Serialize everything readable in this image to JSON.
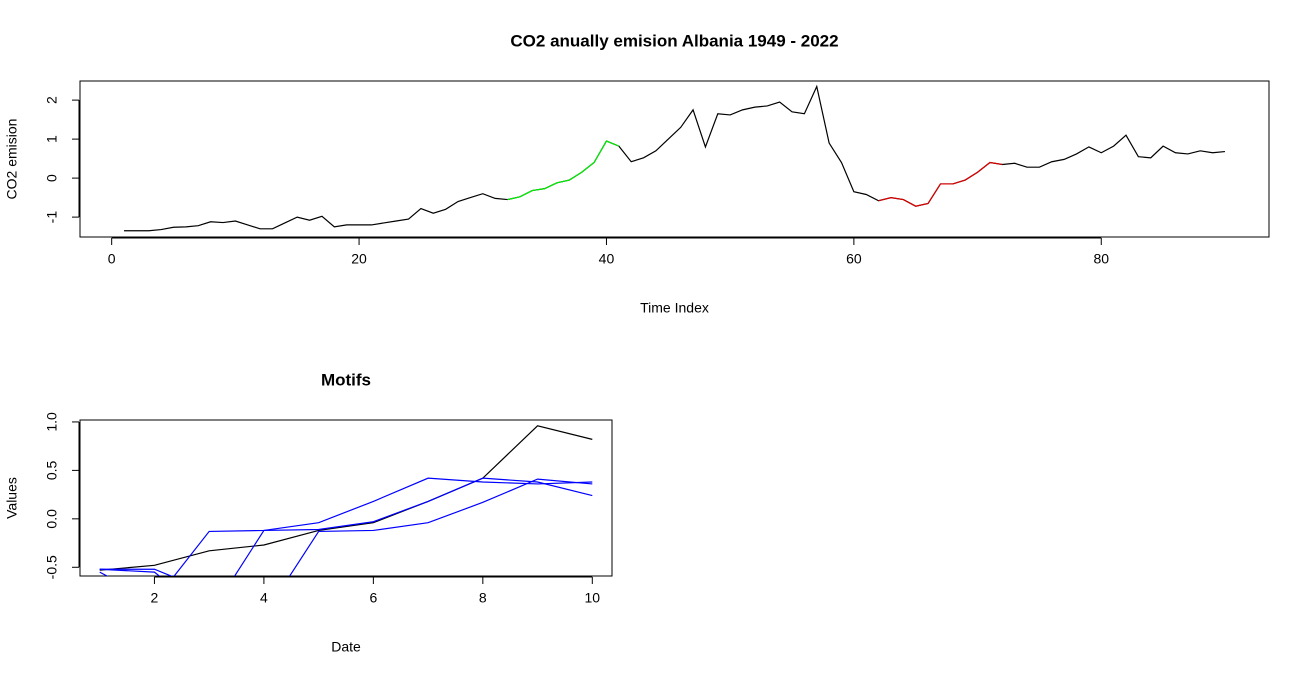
{
  "chart_data": [
    {
      "type": "line",
      "title": "CO2 anually emision Albania 1949 - 2022",
      "x_label": "Time Index",
      "y_label": "CO2 emision",
      "x": [
        1,
        2,
        3,
        4,
        5,
        6,
        7,
        8,
        9,
        10,
        11,
        12,
        13,
        14,
        15,
        16,
        17,
        18,
        19,
        20,
        21,
        22,
        23,
        24,
        25,
        26,
        27,
        28,
        29,
        30,
        31,
        32,
        33,
        34,
        35,
        36,
        37,
        38,
        39,
        40,
        41,
        42,
        43,
        44,
        45,
        46,
        47,
        48,
        49,
        50,
        51,
        52,
        53,
        54,
        55,
        56,
        57,
        58,
        59,
        60,
        61,
        62,
        63,
        64,
        65,
        66,
        67,
        68,
        69,
        70,
        71,
        72,
        73,
        74,
        75,
        76,
        77,
        78,
        79,
        80,
        81,
        82,
        83,
        84,
        85,
        86,
        87,
        88,
        89,
        90
      ],
      "series": [
        {
          "color": "#000000",
          "values": [
            -1.35,
            -1.35,
            -1.35,
            -1.32,
            -1.26,
            -1.25,
            -1.22,
            -1.12,
            -1.14,
            -1.1,
            -1.2,
            -1.3,
            -1.3,
            -1.15,
            -1.0,
            -1.08,
            -0.98,
            -1.25,
            -1.2,
            -1.2,
            -1.2,
            -1.15,
            -1.1,
            -1.05,
            -0.78,
            -0.9,
            -0.8,
            -0.6,
            -0.5,
            -0.4,
            -0.52,
            -0.55,
            -0.48,
            -0.32,
            -0.27,
            -0.12,
            -0.05,
            0.15,
            0.4,
            0.95,
            0.82,
            0.42,
            0.52,
            0.7,
            1.0,
            1.3,
            1.75,
            0.8,
            1.65,
            1.62,
            1.75,
            1.82,
            1.85,
            1.95,
            1.7,
            1.65,
            2.35,
            0.9,
            0.4,
            -0.35,
            -0.42,
            -0.58,
            -0.5,
            -0.55,
            -0.72,
            -0.65,
            -0.15,
            -0.15,
            -0.05,
            0.15,
            0.4,
            0.35,
            0.38,
            0.28,
            0.28,
            0.42,
            0.48,
            0.62,
            0.8,
            0.65,
            0.82,
            1.1,
            0.55,
            0.52,
            0.82,
            0.65,
            0.62,
            0.7,
            0.65,
            0.68
          ]
        },
        {
          "color": "#00ee00",
          "values": [
            null,
            null,
            null,
            null,
            null,
            null,
            null,
            null,
            null,
            null,
            null,
            null,
            null,
            null,
            null,
            null,
            null,
            null,
            null,
            null,
            null,
            null,
            null,
            null,
            null,
            null,
            null,
            null,
            null,
            null,
            null,
            -0.55,
            -0.48,
            -0.32,
            -0.27,
            -0.12,
            -0.05,
            0.15,
            0.4,
            0.95,
            0.82,
            null,
            null,
            null,
            null,
            null,
            null,
            null,
            null,
            null,
            null,
            null,
            null,
            null,
            null,
            null,
            null,
            null,
            null,
            null,
            null,
            null,
            null,
            null,
            null,
            null,
            null,
            null,
            null,
            null,
            null,
            null,
            null,
            null,
            null,
            null,
            null,
            null,
            null,
            null,
            null,
            null,
            null,
            null,
            null,
            null,
            null,
            null,
            null,
            null
          ]
        },
        {
          "color": "#dd0000",
          "values": [
            null,
            null,
            null,
            null,
            null,
            null,
            null,
            null,
            null,
            null,
            null,
            null,
            null,
            null,
            null,
            null,
            null,
            null,
            null,
            null,
            null,
            null,
            null,
            null,
            null,
            null,
            null,
            null,
            null,
            null,
            null,
            null,
            null,
            null,
            null,
            null,
            null,
            null,
            null,
            null,
            null,
            null,
            null,
            null,
            null,
            null,
            null,
            null,
            null,
            null,
            null,
            null,
            null,
            null,
            null,
            null,
            null,
            null,
            null,
            null,
            null,
            -0.58,
            -0.5,
            -0.55,
            -0.72,
            -0.65,
            -0.15,
            -0.15,
            -0.05,
            0.15,
            0.4,
            0.35,
            null,
            null,
            null,
            null,
            null,
            null,
            null,
            null,
            null,
            null,
            null,
            null,
            null,
            null,
            null,
            null,
            null,
            null
          ]
        }
      ],
      "xlim": [
        -2.56,
        93.56
      ],
      "xticks": [
        0,
        20,
        40,
        60,
        80
      ],
      "ylim": [
        -1.51,
        2.49
      ],
      "yticks": [
        -1,
        0,
        1,
        2
      ]
    },
    {
      "type": "line",
      "title": "Motifs",
      "x_label": "Date",
      "y_label": "Values",
      "x": [
        1,
        2,
        3,
        4,
        5,
        6,
        7,
        8,
        9,
        10
      ],
      "series": [
        {
          "color": "#000000",
          "values": [
            -0.53,
            -0.48,
            -0.33,
            -0.27,
            -0.12,
            -0.04,
            0.18,
            0.42,
            0.96,
            0.82
          ]
        },
        {
          "color": "#0000ff",
          "values": [
            -0.55,
            -0.85,
            -0.13,
            -0.12,
            -0.04,
            0.18,
            0.42,
            0.38,
            0.36,
            0.38
          ]
        },
        {
          "color": "#0000ff",
          "values": [
            -0.52,
            -0.55,
            -1.0,
            -0.12,
            -0.11,
            -0.03,
            0.18,
            0.42,
            0.38,
            0.24
          ]
        },
        {
          "color": "#0000ff",
          "values": [
            -0.52,
            -0.52,
            -0.75,
            -1.0,
            -0.13,
            -0.12,
            -0.04,
            0.17,
            0.41,
            0.36
          ]
        }
      ],
      "xlim": [
        0.64,
        10.36
      ],
      "xticks": [
        2,
        4,
        6,
        8,
        10
      ],
      "ylim": [
        -0.59,
        1.02
      ],
      "yticks": [
        -0.5,
        {
          "value": 0,
          "label": "0.0"
        },
        0.5,
        {
          "value": 1,
          "label": "1.0"
        }
      ]
    }
  ]
}
